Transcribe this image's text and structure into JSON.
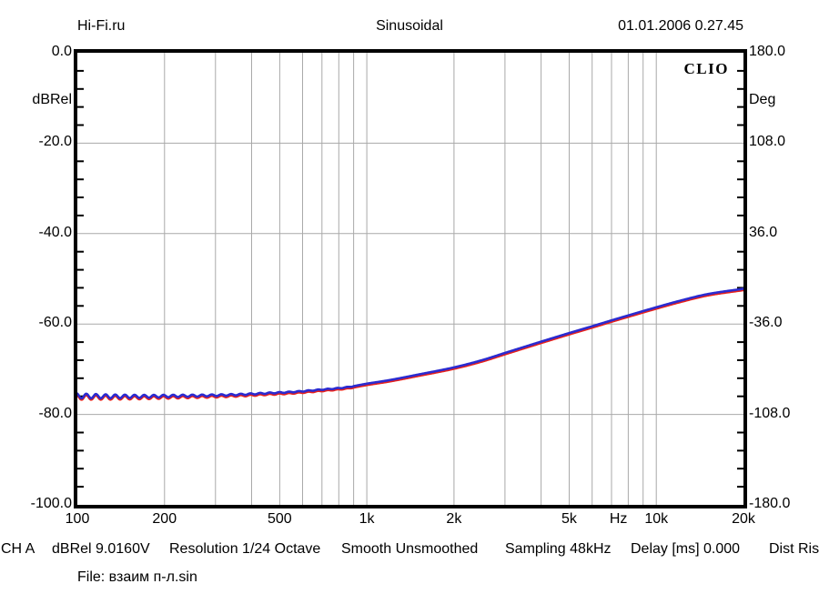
{
  "header": {
    "left": "Hi-Fi.ru",
    "center": "Sinusoidal",
    "right": "01.01.2006 0.27.45"
  },
  "logo": "CLIO",
  "status_bar": {
    "channel": "CH A",
    "level": "dBRel 9.0160V",
    "resolution": "Resolution 1/24 Octave",
    "smoothing": "Smooth Unsmoothed",
    "sampling": "Sampling 48kHz",
    "delay": "Delay [ms] 0.000",
    "dist": "Dist Ris"
  },
  "file_line": "File: взаим п-л.sin",
  "chart_data": {
    "type": "line",
    "title": "Sinusoidal",
    "x_axis": {
      "unit": "Hz",
      "scale": "log",
      "min": 100,
      "max": 20000,
      "tick_labels": [
        {
          "f": 100,
          "label": "100"
        },
        {
          "f": 200,
          "label": "200"
        },
        {
          "f": 500,
          "label": "500"
        },
        {
          "f": 1000,
          "label": "1k"
        },
        {
          "f": 2000,
          "label": "2k"
        },
        {
          "f": 5000,
          "label": "5k"
        },
        {
          "f": 10000,
          "label": "10k"
        },
        {
          "f": 20000,
          "label": "20k"
        }
      ],
      "unit_label_freq": 7400,
      "gridlines": [
        200,
        300,
        400,
        500,
        600,
        700,
        800,
        900,
        1000,
        2000,
        3000,
        4000,
        5000,
        6000,
        7000,
        8000,
        9000,
        10000
      ]
    },
    "y_axis_left": {
      "label": "dBRel",
      "min": -100,
      "max": 0,
      "major_step": 20,
      "minor_step": 4,
      "tick_labels": [
        {
          "v": 0,
          "label": "0.0"
        },
        {
          "v": -20,
          "label": "-20.0"
        },
        {
          "v": -40,
          "label": "-40.0"
        },
        {
          "v": -60,
          "label": "-60.0"
        },
        {
          "v": -80,
          "label": "-80.0"
        },
        {
          "v": -100,
          "label": "-100.0"
        }
      ],
      "gridlines": [
        -20,
        -40,
        -60,
        -80
      ]
    },
    "y_axis_right": {
      "label": "Deg",
      "min": -180,
      "max": 180,
      "tick_labels": [
        {
          "v": 180,
          "label": "180.0"
        },
        {
          "v": 108,
          "label": "108.0"
        },
        {
          "v": 36,
          "label": "36.0"
        },
        {
          "v": -36,
          "label": "-36.0"
        },
        {
          "v": -108,
          "label": "-108.0"
        },
        {
          "v": -180,
          "label": "-180.0"
        }
      ]
    },
    "base_points": [
      [
        100,
        -75.9
      ],
      [
        130,
        -76.0
      ],
      [
        170,
        -76.0
      ],
      [
        220,
        -75.9
      ],
      [
        280,
        -75.8
      ],
      [
        360,
        -75.6
      ],
      [
        450,
        -75.3
      ],
      [
        560,
        -75.0
      ],
      [
        700,
        -74.5
      ],
      [
        850,
        -74.0
      ],
      [
        1000,
        -73.2
      ],
      [
        1200,
        -72.4
      ],
      [
        1500,
        -71.2
      ],
      [
        2000,
        -69.6
      ],
      [
        2500,
        -68.0
      ],
      [
        3000,
        -66.4
      ],
      [
        4000,
        -63.9
      ],
      [
        5000,
        -62.0
      ],
      [
        6000,
        -60.5
      ],
      [
        7000,
        -59.2
      ],
      [
        8000,
        -58.1
      ],
      [
        10000,
        -56.3
      ],
      [
        12000,
        -54.9
      ],
      [
        15000,
        -53.4
      ],
      [
        20000,
        -52.2
      ]
    ],
    "ripple": {
      "amplitude_db": 0.55,
      "decay_per_decade": 2.2,
      "cycles_per_decade": 30,
      "phase": 2.0,
      "fade_end_hz": 900
    },
    "series": [
      {
        "name": "trace-red",
        "color": "#e8211a",
        "db_offset": -0.3,
        "width": 2.6
      },
      {
        "name": "trace-blue",
        "color": "#2b2bd0",
        "db_offset": 0,
        "width": 2.6
      }
    ],
    "colors": {
      "grid": "#a9a9a9",
      "axis": "#000000"
    },
    "legend": "none",
    "grid": "on"
  }
}
